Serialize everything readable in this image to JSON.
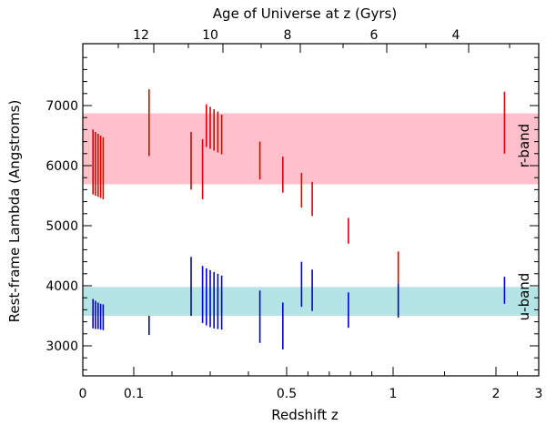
{
  "chart_data": {
    "type": "range-segments",
    "xlabel": "Redshift z",
    "ylabel": "Rest-frame Lambda (Angstroms)",
    "top_axis_label": "Age of Universe at z (Gyrs)",
    "x_axis": {
      "xlim": [
        0,
        3
      ],
      "tick_labels": [
        "0",
        "0.1",
        "0.5",
        "1",
        "2",
        "3"
      ],
      "tick_values": [
        0,
        0.1,
        0.5,
        1,
        2,
        3
      ]
    },
    "y_axis": {
      "ylim": [
        2500,
        7900
      ],
      "tick_labels": [
        "3000",
        "4000",
        "5000",
        "6000",
        "7000"
      ],
      "tick_values": [
        3000,
        4000,
        5000,
        6000,
        7000
      ]
    },
    "top_axis": {
      "tick_labels": [
        "12",
        "10",
        "8",
        "6",
        "4"
      ]
    },
    "bands": [
      {
        "name": "r-band",
        "from": 5690,
        "to": 6870,
        "color": "#ffc0cb",
        "label_color": "#dd0000"
      },
      {
        "name": "u-band",
        "from": 3500,
        "to": 3980,
        "color": "#b4e4e6",
        "label_color": "#0000dd"
      }
    ],
    "series": [
      {
        "name": "r-band",
        "color": "#dd0000",
        "segments": [
          {
            "z": 0.02,
            "from": 5520,
            "to": 6600
          },
          {
            "z": 0.025,
            "from": 5500,
            "to": 6560
          },
          {
            "z": 0.03,
            "from": 5480,
            "to": 6530
          },
          {
            "z": 0.035,
            "from": 5460,
            "to": 6500
          },
          {
            "z": 0.04,
            "from": 5440,
            "to": 6470
          },
          {
            "z": 0.14,
            "from": 6160,
            "to": 7270
          },
          {
            "z": 0.25,
            "from": 5600,
            "to": 6560
          },
          {
            "z": 0.28,
            "from": 5440,
            "to": 6440
          },
          {
            "z": 0.29,
            "from": 6310,
            "to": 7020
          },
          {
            "z": 0.3,
            "from": 6280,
            "to": 6980
          },
          {
            "z": 0.31,
            "from": 6250,
            "to": 6940
          },
          {
            "z": 0.32,
            "from": 6220,
            "to": 6900
          },
          {
            "z": 0.33,
            "from": 6190,
            "to": 6850
          },
          {
            "z": 0.43,
            "from": 5770,
            "to": 6400
          },
          {
            "z": 0.49,
            "from": 5550,
            "to": 6150
          },
          {
            "z": 0.57,
            "from": 5300,
            "to": 5880
          },
          {
            "z": 0.62,
            "from": 5160,
            "to": 5730
          },
          {
            "z": 0.79,
            "from": 4700,
            "to": 5130
          },
          {
            "z": 1.05,
            "from": 4040,
            "to": 4570
          },
          {
            "z": 2.2,
            "from": 6200,
            "to": 7230
          }
        ]
      },
      {
        "name": "u-band",
        "color": "#0000cc",
        "segments": [
          {
            "z": 0.02,
            "from": 3290,
            "to": 3780
          },
          {
            "z": 0.025,
            "from": 3280,
            "to": 3750
          },
          {
            "z": 0.03,
            "from": 3280,
            "to": 3720
          },
          {
            "z": 0.035,
            "from": 3270,
            "to": 3700
          },
          {
            "z": 0.04,
            "from": 3260,
            "to": 3690
          },
          {
            "z": 0.14,
            "from": 3180,
            "to": 3500
          },
          {
            "z": 0.25,
            "from": 3500,
            "to": 4480
          },
          {
            "z": 0.28,
            "from": 3380,
            "to": 4330
          },
          {
            "z": 0.29,
            "from": 3340,
            "to": 4290
          },
          {
            "z": 0.3,
            "from": 3310,
            "to": 4260
          },
          {
            "z": 0.31,
            "from": 3290,
            "to": 4230
          },
          {
            "z": 0.32,
            "from": 3280,
            "to": 4200
          },
          {
            "z": 0.33,
            "from": 3270,
            "to": 4170
          },
          {
            "z": 0.43,
            "from": 3050,
            "to": 3920
          },
          {
            "z": 0.49,
            "from": 2940,
            "to": 3720
          },
          {
            "z": 0.57,
            "from": 3650,
            "to": 4400
          },
          {
            "z": 0.62,
            "from": 3580,
            "to": 4270
          },
          {
            "z": 0.79,
            "from": 3300,
            "to": 3890
          },
          {
            "z": 1.05,
            "from": 3470,
            "to": 4040
          },
          {
            "z": 2.2,
            "from": 3700,
            "to": 4150
          }
        ]
      }
    ]
  }
}
